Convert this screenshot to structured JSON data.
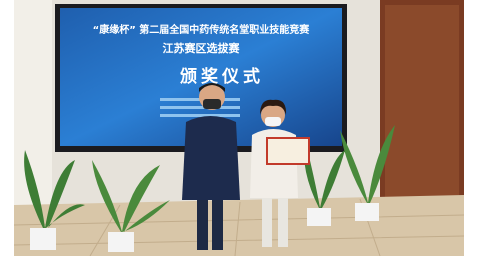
{
  "screen": {
    "line1": "“康缘杯” 第二届全国中药传统名堂职业技能竞赛",
    "line2": "江苏赛区选拔赛",
    "line3": "颁奖仪式"
  }
}
